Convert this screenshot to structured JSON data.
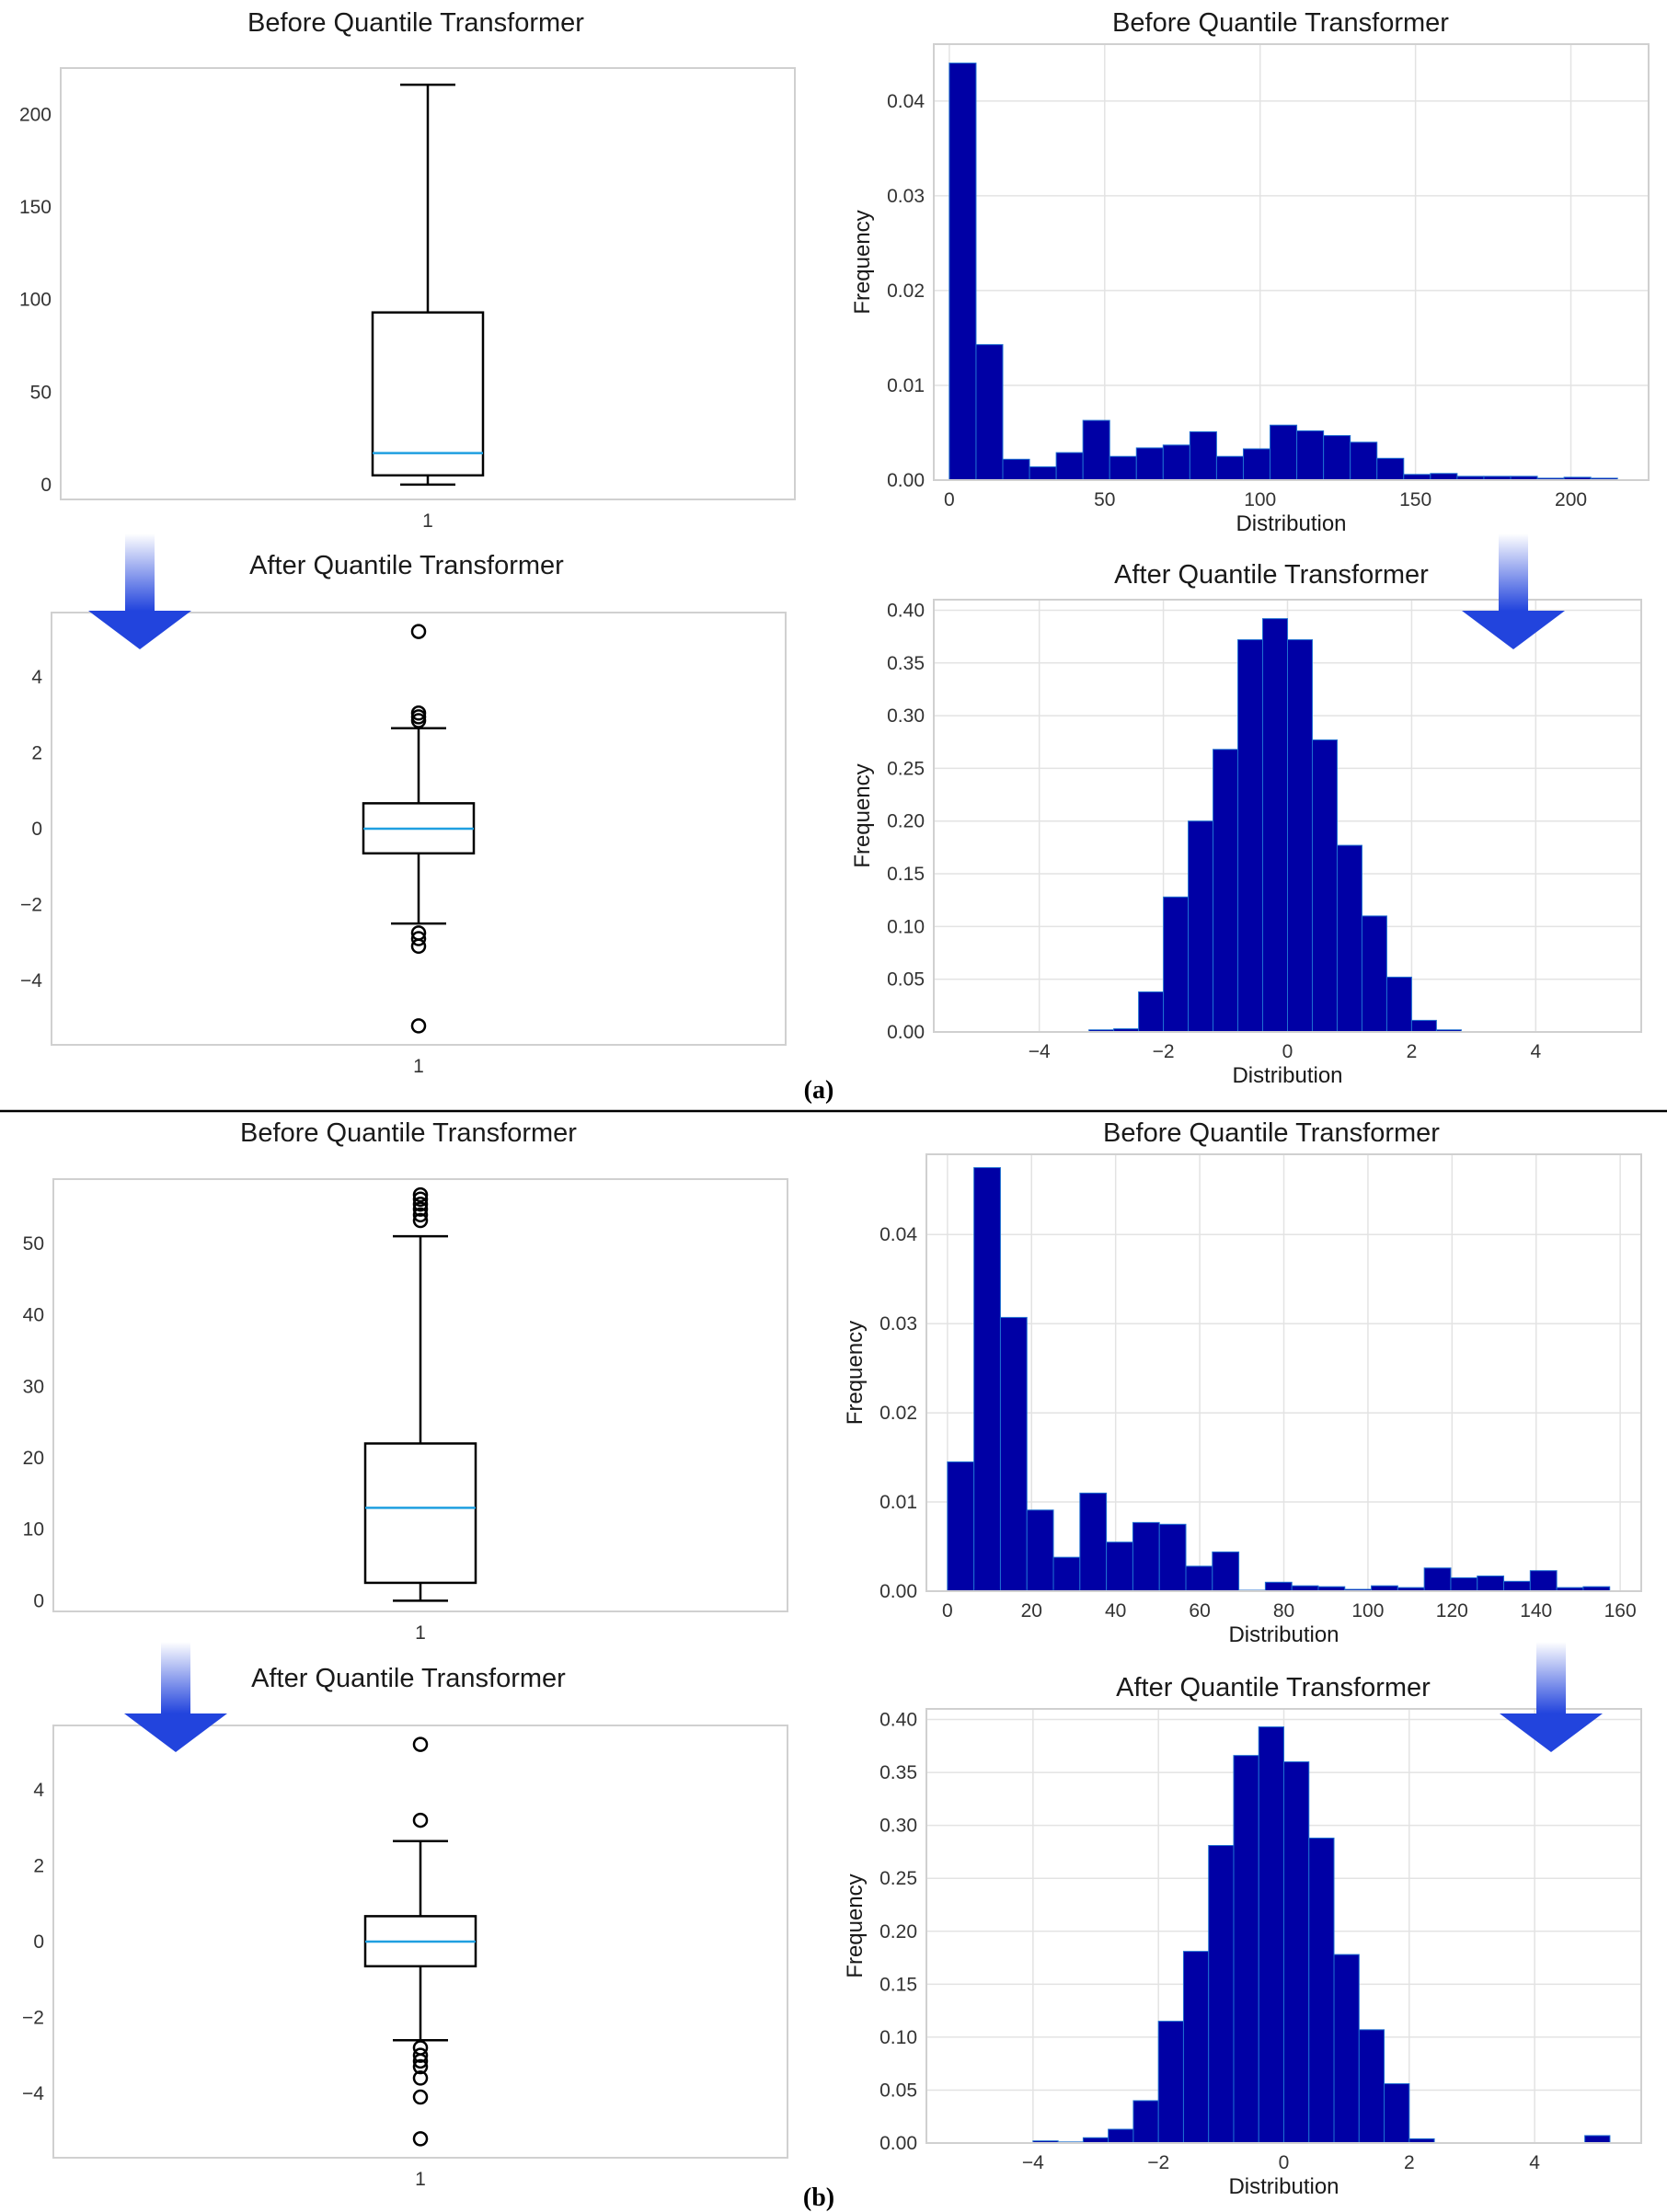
{
  "captions": [
    "(a)",
    "(b)"
  ],
  "arrow": {
    "top_color": "#ffffff",
    "bottom_color": "#2244dd"
  },
  "colors": {
    "bar": "#0000a5",
    "bar_edge": "#1f6fd0",
    "median": "#1f9fe0",
    "grid": "#e3e3e3",
    "frame": "#d0d0d0"
  },
  "chart_data": [
    {
      "panel": "a",
      "type": "box",
      "title": "Before Quantile Transformer",
      "category": "1",
      "ylim": [
        -8,
        225
      ],
      "yticks": [
        0,
        50,
        100,
        150,
        200
      ],
      "whisker_low": 0,
      "q1": 5,
      "median": 17,
      "q3": 93,
      "whisker_high": 216,
      "fliers": []
    },
    {
      "panel": "a",
      "type": "bar",
      "title": "Before Quantile Transformer",
      "xlabel": "Distribution",
      "ylabel": "Frequency",
      "xlim": [
        -5,
        225
      ],
      "ylim": [
        0,
        0.046
      ],
      "xticks": [
        0,
        50,
        100,
        150,
        200
      ],
      "yticks": [
        0.0,
        0.01,
        0.02,
        0.03,
        0.04
      ],
      "ytick_decimals": 2,
      "bin_start": 0,
      "bin_width": 8.6,
      "values": [
        0.044,
        0.0143,
        0.0022,
        0.0014,
        0.0029,
        0.0063,
        0.0025,
        0.0034,
        0.0037,
        0.0051,
        0.0025,
        0.0033,
        0.0058,
        0.0052,
        0.0047,
        0.004,
        0.0023,
        0.0006,
        0.0007,
        0.0004,
        0.0004,
        0.0004,
        0.0002,
        0.0003,
        0.0002
      ]
    },
    {
      "panel": "a",
      "type": "box",
      "title": "After Quantile Transformer",
      "category": "1",
      "ylim": [
        -5.7,
        5.7
      ],
      "yticks": [
        -4,
        -2,
        0,
        2,
        4
      ],
      "whisker_low": -2.5,
      "q1": -0.65,
      "median": 0.0,
      "q3": 0.67,
      "whisker_high": 2.65,
      "fliers": [
        5.2,
        3.05,
        2.95,
        2.85,
        -2.75,
        -2.9,
        -3.1,
        -5.2
      ]
    },
    {
      "panel": "a",
      "type": "bar",
      "title": "After Quantile Transformer",
      "xlabel": "Distribution",
      "ylabel": "Frequency",
      "xlim": [
        -5.7,
        5.7
      ],
      "ylim": [
        0,
        0.41
      ],
      "xticks": [
        -4,
        -2,
        0,
        2,
        4
      ],
      "yticks": [
        0.0,
        0.05,
        0.1,
        0.15,
        0.2,
        0.25,
        0.3,
        0.35,
        0.4
      ],
      "ytick_decimals": 2,
      "bin_start": -3.2,
      "bin_width": 0.4,
      "values": [
        0.002,
        0.003,
        0.038,
        0.128,
        0.2,
        0.268,
        0.372,
        0.392,
        0.372,
        0.277,
        0.177,
        0.11,
        0.052,
        0.011,
        0.002
      ]
    },
    {
      "panel": "b",
      "type": "box",
      "title": "Before Quantile Transformer",
      "category": "1",
      "ylim": [
        -1.5,
        59
      ],
      "yticks": [
        0,
        10,
        20,
        30,
        40,
        50
      ],
      "whisker_low": 0,
      "q1": 2.5,
      "median": 13,
      "q3": 22,
      "whisker_high": 51,
      "fliers": [
        53.2,
        54,
        54.8,
        55.5,
        56.2,
        56.8
      ]
    },
    {
      "panel": "b",
      "type": "bar",
      "title": "Before Quantile Transformer",
      "xlabel": "Distribution",
      "ylabel": "Frequency",
      "xlim": [
        -5,
        165
      ],
      "ylim": [
        0,
        0.049
      ],
      "xticks": [
        0,
        20,
        40,
        60,
        80,
        100,
        120,
        140,
        160
      ],
      "yticks": [
        0.0,
        0.01,
        0.02,
        0.03,
        0.04
      ],
      "ytick_decimals": 2,
      "bin_start": 0,
      "bin_width": 6.3,
      "values": [
        0.0145,
        0.0475,
        0.0307,
        0.0091,
        0.0038,
        0.011,
        0.0055,
        0.0077,
        0.0075,
        0.0028,
        0.0044,
        0.0001,
        0.001,
        0.0006,
        0.0005,
        0.0002,
        0.0006,
        0.0004,
        0.0026,
        0.0015,
        0.0017,
        0.0011,
        0.0023,
        0.0004,
        0.0005
      ]
    },
    {
      "panel": "b",
      "type": "box",
      "title": "After Quantile Transformer",
      "category": "1",
      "ylim": [
        -5.7,
        5.7
      ],
      "yticks": [
        -4,
        -2,
        0,
        2,
        4
      ],
      "whisker_low": -2.6,
      "q1": -0.65,
      "median": 0.0,
      "q3": 0.67,
      "whisker_high": 2.65,
      "fliers": [
        5.2,
        3.2,
        -2.8,
        -3.0,
        -3.15,
        -3.3,
        -3.6,
        -4.1,
        -5.2
      ]
    },
    {
      "panel": "b",
      "type": "bar",
      "title": "After Quantile Transformer",
      "xlabel": "Distribution",
      "ylabel": "Frequency",
      "xlim": [
        -5.7,
        5.7
      ],
      "ylim": [
        0,
        0.41
      ],
      "xticks": [
        -4,
        -2,
        0,
        2,
        4
      ],
      "yticks": [
        0.0,
        0.05,
        0.1,
        0.15,
        0.2,
        0.25,
        0.3,
        0.35,
        0.4
      ],
      "ytick_decimals": 2,
      "bin_start": -4.0,
      "bin_width": 0.4,
      "values": [
        0.002,
        0.001,
        0.005,
        0.013,
        0.04,
        0.115,
        0.181,
        0.281,
        0.366,
        0.393,
        0.36,
        0.288,
        0.178,
        0.107,
        0.056,
        0.004,
        0.0,
        0.0,
        0.0,
        0.0,
        0.0,
        0.0,
        0.007
      ]
    }
  ]
}
